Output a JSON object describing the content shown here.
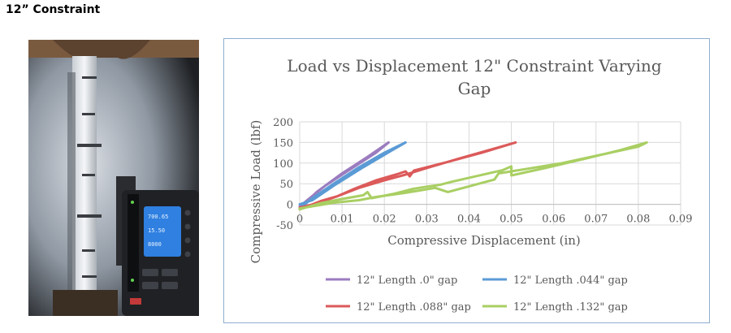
{
  "heading": "12” Constraint",
  "photo": {
    "device_readouts": [
      "700.65",
      "15.50",
      "8000"
    ]
  },
  "chart_data": {
    "type": "line",
    "title": "Load vs Displacement 12\" Constraint Varying Gap",
    "xlabel": "Compressive Displacement (in)",
    "ylabel": "Compressive Load (lbf)",
    "xlim": [
      0,
      0.09
    ],
    "ylim": [
      -50,
      200
    ],
    "x_ticks": [
      "0",
      "0.01",
      "0.02",
      "0.03",
      "0.04",
      "0.05",
      "0.06",
      "0.07",
      "0.08",
      "0.09"
    ],
    "y_ticks": [
      "-50",
      "0",
      "50",
      "100",
      "150",
      "200"
    ],
    "grid": true,
    "legend_position": "bottom",
    "series": [
      {
        "name": "12\" Length .0\" gap",
        "color": "#9b7cbf",
        "points": [
          [
            0,
            -10
          ],
          [
            0.004,
            30
          ],
          [
            0.01,
            75
          ],
          [
            0.016,
            115
          ],
          [
            0.021,
            150
          ],
          [
            0.018,
            125
          ],
          [
            0.012,
            85
          ],
          [
            0.006,
            45
          ],
          [
            0.002,
            12
          ],
          [
            0.0,
            -5
          ]
        ]
      },
      {
        "name": "12\" Length .044\" gap",
        "color": "#5b9bd5",
        "points": [
          [
            0,
            -10
          ],
          [
            0.003,
            15
          ],
          [
            0.008,
            50
          ],
          [
            0.014,
            90
          ],
          [
            0.02,
            125
          ],
          [
            0.025,
            150
          ],
          [
            0.022,
            132
          ],
          [
            0.015,
            90
          ],
          [
            0.008,
            45
          ],
          [
            0.003,
            10
          ],
          [
            0.0,
            0
          ]
        ]
      },
      {
        "name": "12\" Length .088\" gap",
        "color": "#dc5a5a",
        "points": [
          [
            0,
            -12
          ],
          [
            0.005,
            8
          ],
          [
            0.009,
            20
          ],
          [
            0.013,
            38
          ],
          [
            0.018,
            58
          ],
          [
            0.023,
            73
          ],
          [
            0.025,
            80
          ],
          [
            0.026,
            68
          ],
          [
            0.027,
            82
          ],
          [
            0.035,
            103
          ],
          [
            0.043,
            125
          ],
          [
            0.051,
            150
          ],
          [
            0.047,
            138
          ],
          [
            0.038,
            112
          ],
          [
            0.03,
            88
          ],
          [
            0.025,
            72
          ],
          [
            0.02,
            58
          ],
          [
            0.014,
            40
          ],
          [
            0.009,
            20
          ],
          [
            0.004,
            2
          ],
          [
            0.0,
            -8
          ]
        ]
      },
      {
        "name": "12\" Length .132\" gap",
        "color": "#a9cf63",
        "points": [
          [
            0,
            -12
          ],
          [
            0.005,
            3
          ],
          [
            0.01,
            13
          ],
          [
            0.015,
            22
          ],
          [
            0.016,
            30
          ],
          [
            0.017,
            15
          ],
          [
            0.022,
            25
          ],
          [
            0.027,
            38
          ],
          [
            0.03,
            43
          ],
          [
            0.033,
            47
          ],
          [
            0.036,
            55
          ],
          [
            0.048,
            83
          ],
          [
            0.05,
            92
          ],
          [
            0.05,
            70
          ],
          [
            0.058,
            88
          ],
          [
            0.068,
            112
          ],
          [
            0.076,
            132
          ],
          [
            0.082,
            150
          ],
          [
            0.08,
            140
          ],
          [
            0.072,
            122
          ],
          [
            0.062,
            100
          ],
          [
            0.05,
            80
          ],
          [
            0.047,
            75
          ],
          [
            0.046,
            60
          ],
          [
            0.035,
            30
          ],
          [
            0.032,
            40
          ],
          [
            0.025,
            28
          ],
          [
            0.018,
            18
          ],
          [
            0.014,
            10
          ],
          [
            0.008,
            4
          ],
          [
            0.0,
            -10
          ]
        ]
      }
    ]
  }
}
